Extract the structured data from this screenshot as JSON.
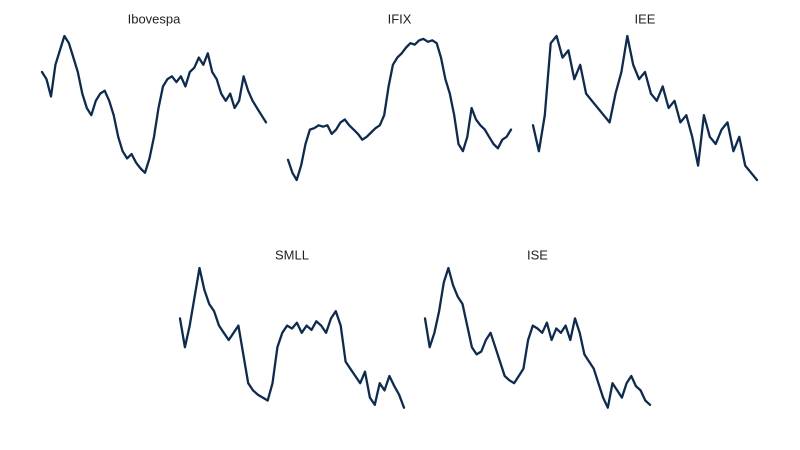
{
  "chart_data": [
    {
      "type": "line",
      "title": "Ibovespa",
      "color": "#0d2b52",
      "ylim": [
        0,
        100
      ],
      "values": [
        75,
        70,
        58,
        80,
        90,
        100,
        95,
        85,
        75,
        60,
        50,
        45,
        55,
        60,
        62,
        55,
        45,
        30,
        20,
        15,
        18,
        12,
        8,
        5,
        15,
        30,
        50,
        65,
        70,
        72,
        68,
        72,
        65,
        75,
        78,
        85,
        80,
        88,
        75,
        70,
        60,
        55,
        60,
        50,
        55,
        72,
        62,
        55,
        50,
        45,
        40
      ]
    },
    {
      "type": "line",
      "title": "IFIX",
      "color": "#0d2b52",
      "ylim": [
        0,
        100
      ],
      "values": [
        14,
        5,
        0,
        10,
        25,
        35,
        36,
        38,
        37,
        38,
        32,
        35,
        40,
        42,
        38,
        35,
        32,
        28,
        30,
        33,
        36,
        38,
        45,
        65,
        80,
        85,
        88,
        92,
        95,
        94,
        97,
        98,
        96,
        97,
        95,
        85,
        70,
        60,
        45,
        25,
        20,
        30,
        50,
        42,
        38,
        35,
        30,
        25,
        22,
        28,
        30,
        35
      ]
    },
    {
      "type": "line",
      "title": "IEE",
      "color": "#0d2b52",
      "ylim": [
        0,
        100
      ],
      "values": [
        38,
        20,
        45,
        95,
        100,
        85,
        90,
        70,
        80,
        60,
        55,
        50,
        45,
        40,
        60,
        75,
        100,
        80,
        70,
        75,
        60,
        55,
        65,
        50,
        55,
        40,
        45,
        30,
        10,
        45,
        30,
        25,
        35,
        40,
        20,
        30,
        10,
        5,
        0
      ]
    },
    {
      "type": "line",
      "title": "SMLL",
      "color": "#0d2b52",
      "ylim": [
        0,
        100
      ],
      "values": [
        65,
        45,
        60,
        80,
        100,
        85,
        75,
        70,
        60,
        55,
        50,
        55,
        60,
        40,
        20,
        15,
        12,
        10,
        8,
        20,
        45,
        55,
        60,
        58,
        62,
        55,
        60,
        57,
        63,
        60,
        55,
        65,
        70,
        60,
        35,
        30,
        25,
        20,
        28,
        10,
        5,
        20,
        15,
        25,
        18,
        12,
        3
      ]
    },
    {
      "type": "line",
      "title": "ISE",
      "color": "#0d2b52",
      "ylim": [
        0,
        100
      ],
      "values": [
        65,
        45,
        55,
        70,
        90,
        100,
        88,
        80,
        75,
        60,
        45,
        40,
        42,
        50,
        55,
        45,
        35,
        25,
        22,
        20,
        25,
        30,
        50,
        60,
        58,
        55,
        62,
        50,
        58,
        55,
        60,
        50,
        65,
        55,
        40,
        35,
        30,
        20,
        10,
        3,
        20,
        15,
        10,
        20,
        25,
        18,
        15,
        8,
        5
      ]
    }
  ]
}
